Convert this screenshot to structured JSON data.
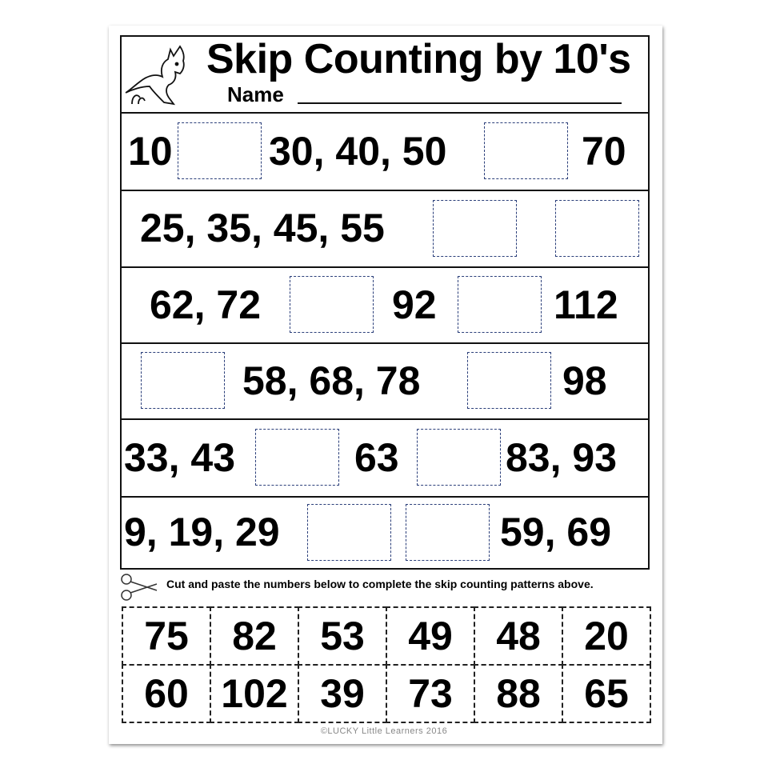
{
  "header": {
    "title": "Skip Counting by 10's",
    "name_label": "Name"
  },
  "rows": [
    {
      "items": [
        {
          "t": "10"
        },
        {
          "box": true
        },
        {
          "t": "30, 40, 50"
        },
        {
          "box": true
        },
        {
          "t": "70"
        }
      ]
    },
    {
      "items": [
        {
          "t": "25, 35, 45, 55"
        },
        {
          "box": true
        },
        {
          "box": true
        }
      ]
    },
    {
      "items": [
        {
          "t": "62, 72"
        },
        {
          "box": true
        },
        {
          "t": "92"
        },
        {
          "box": true
        },
        {
          "t": "112"
        }
      ]
    },
    {
      "items": [
        {
          "box": true
        },
        {
          "t": "58, 68, 78"
        },
        {
          "box": true
        },
        {
          "t": "98"
        }
      ]
    },
    {
      "items": [
        {
          "t": "33, 43"
        },
        {
          "box": true
        },
        {
          "t": "63"
        },
        {
          "box": true
        },
        {
          "t": "83, 93"
        }
      ]
    },
    {
      "items": [
        {
          "t": "9, 19, 29"
        },
        {
          "box": true
        },
        {
          "box": true
        },
        {
          "t": "59, 69"
        }
      ]
    }
  ],
  "instructions": "Cut and paste the numbers below to complete the skip counting patterns above.",
  "cutouts": [
    [
      "75",
      "82",
      "53",
      "49",
      "48",
      "20"
    ],
    [
      "60",
      "102",
      "39",
      "73",
      "88",
      "65"
    ]
  ],
  "footer": {
    "copyright": "©LUCKY Little Learners 2016"
  },
  "colors": {
    "box_border": "#2b3f7a"
  },
  "icons": {
    "header": "kangaroo-icon",
    "instructions": "scissors-icon"
  }
}
